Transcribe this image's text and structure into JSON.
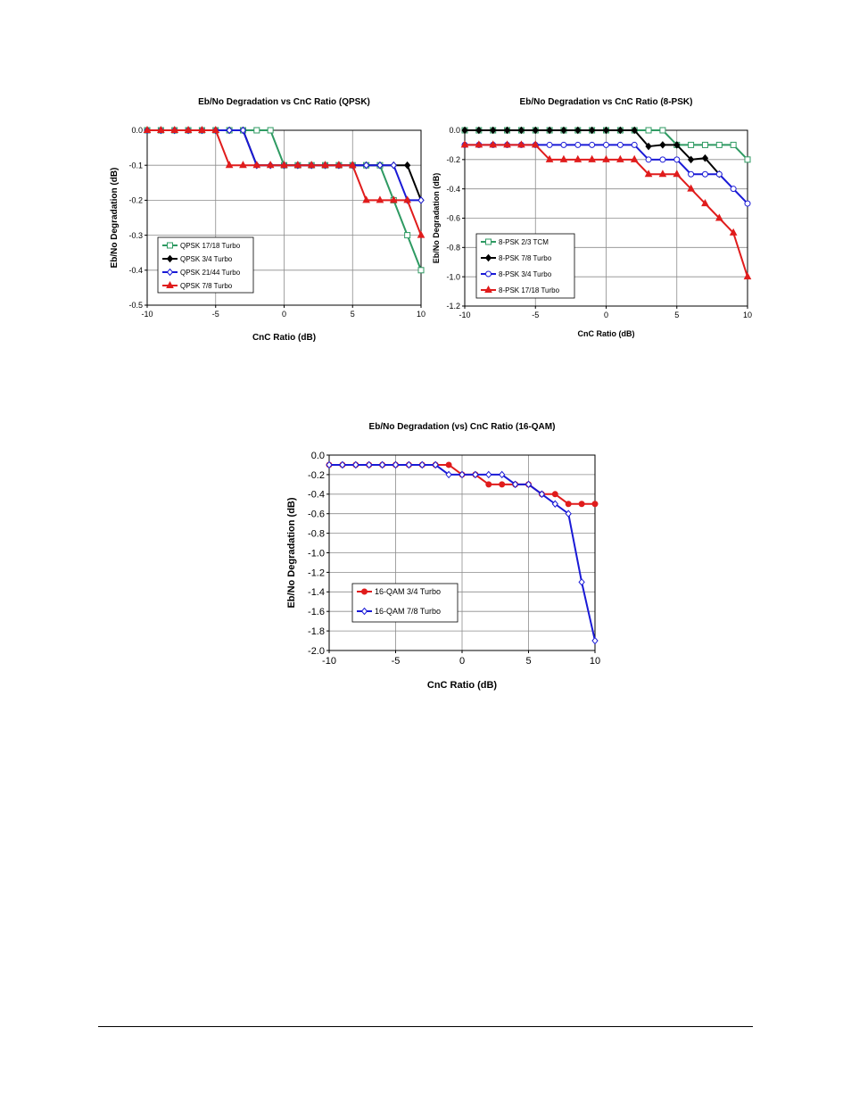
{
  "chart_data": [
    {
      "type": "line",
      "title": "Eb/No Degradation vs CnC Ratio (QPSK)",
      "xlabel": "CnC Ratio (dB)",
      "ylabel": "Eb/No Degradation (dB)",
      "xlim": [
        -10,
        10
      ],
      "ylim": [
        -0.5,
        0.0
      ],
      "xticks": [
        -10,
        -5,
        0,
        5,
        10
      ],
      "xtick_labels": [
        "-10",
        "-5",
        "0",
        "5",
        "10"
      ],
      "yticks": [
        0.0,
        -0.1,
        -0.2,
        -0.3,
        -0.4,
        -0.5
      ],
      "ytick_labels": [
        "0.0",
        "-0.1",
        "-0.2",
        "-0.3",
        "-0.4",
        "-0.5"
      ],
      "grid": true,
      "legend_position": "bottom-left",
      "series": [
        {
          "name": "QPSK 17/18 Turbo",
          "color": "#2e9a62",
          "marker": "open-square",
          "x": [
            -10,
            -9,
            -8,
            -7,
            -6,
            -5,
            -4,
            -3,
            -2,
            -1,
            0,
            1,
            2,
            3,
            4,
            5,
            6,
            7,
            8,
            9,
            10
          ],
          "y": [
            0,
            0,
            0,
            0,
            0,
            0,
            0,
            0,
            0,
            0,
            -0.1,
            -0.1,
            -0.1,
            -0.1,
            -0.1,
            -0.1,
            -0.1,
            -0.1,
            -0.2,
            -0.3,
            -0.4
          ]
        },
        {
          "name": "QPSK 3/4 Turbo",
          "color": "#000000",
          "marker": "filled-diamond",
          "x": [
            -10,
            -9,
            -8,
            -7,
            -6,
            -5,
            -4,
            -3,
            -2,
            -1,
            0,
            1,
            2,
            3,
            4,
            5,
            6,
            7,
            8,
            9,
            10
          ],
          "y": [
            0,
            0,
            0,
            0,
            0,
            0,
            0,
            0,
            -0.1,
            -0.1,
            -0.1,
            -0.1,
            -0.1,
            -0.1,
            -0.1,
            -0.1,
            -0.1,
            -0.1,
            -0.1,
            -0.1,
            -0.2
          ]
        },
        {
          "name": "QPSK 21/44 Turbo",
          "color": "#1a1ad6",
          "marker": "open-diamond",
          "x": [
            -10,
            -9,
            -8,
            -7,
            -6,
            -5,
            -4,
            -3,
            -2,
            -1,
            0,
            1,
            2,
            3,
            4,
            5,
            6,
            7,
            8,
            9,
            10
          ],
          "y": [
            0,
            0,
            0,
            0,
            0,
            0,
            0,
            0,
            -0.1,
            -0.1,
            -0.1,
            -0.1,
            -0.1,
            -0.1,
            -0.1,
            -0.1,
            -0.1,
            -0.1,
            -0.1,
            -0.2,
            -0.2
          ]
        },
        {
          "name": "QPSK 7/8 Turbo",
          "color": "#e01c1c",
          "marker": "filled-triangle",
          "x": [
            -10,
            -9,
            -8,
            -7,
            -6,
            -5,
            -4,
            -3,
            -2,
            -1,
            0,
            1,
            2,
            3,
            4,
            5,
            6,
            7,
            8,
            9,
            10
          ],
          "y": [
            0,
            0,
            0,
            0,
            0,
            0,
            -0.1,
            -0.1,
            -0.1,
            -0.1,
            -0.1,
            -0.1,
            -0.1,
            -0.1,
            -0.1,
            -0.1,
            -0.2,
            -0.2,
            -0.2,
            -0.2,
            -0.3
          ]
        }
      ]
    },
    {
      "type": "line",
      "title": "Eb/No Degradation vs CnC Ratio (8-PSK)",
      "xlabel": "CnC Ratio (dB)",
      "ylabel": "Eb/No Degradation (dB)",
      "xlim": [
        -10,
        10
      ],
      "ylim": [
        -1.2,
        0.0
      ],
      "xticks": [
        -10,
        -5,
        0,
        5,
        10
      ],
      "xtick_labels": [
        "-10",
        "-5",
        "0",
        "5",
        "10"
      ],
      "yticks": [
        0.0,
        -0.2,
        -0.4,
        -0.6,
        -0.8,
        -1.0,
        -1.2
      ],
      "ytick_labels": [
        "0.0",
        "-0.2",
        "-0.4",
        "-0.6",
        "-0.8",
        "-1.0",
        "-1.2"
      ],
      "grid": true,
      "legend_position": "bottom-left",
      "series": [
        {
          "name": "8-PSK 2/3 TCM",
          "color": "#2e9a62",
          "marker": "open-square",
          "x": [
            -10,
            -9,
            -8,
            -7,
            -6,
            -5,
            -4,
            -3,
            -2,
            -1,
            0,
            1,
            2,
            3,
            4,
            5,
            6,
            7,
            8,
            9,
            10
          ],
          "y": [
            0,
            0,
            0,
            0,
            0,
            0,
            0,
            0,
            0,
            0,
            0,
            0,
            0,
            0,
            0,
            -0.1,
            -0.1,
            -0.1,
            -0.1,
            -0.1,
            -0.2
          ]
        },
        {
          "name": "8-PSK 7/8 Turbo",
          "color": "#000000",
          "marker": "filled-diamond",
          "x": [
            -10,
            -9,
            -8,
            -7,
            -6,
            -5,
            -4,
            -3,
            -2,
            -1,
            0,
            1,
            2,
            3,
            4,
            5,
            6,
            7,
            8
          ],
          "y": [
            0,
            0,
            0,
            0,
            0,
            0,
            0,
            0,
            0,
            0,
            0,
            0,
            0,
            -0.11,
            -0.1,
            -0.1,
            -0.2,
            -0.19,
            -0.3
          ]
        },
        {
          "name": "8-PSK 3/4 Turbo",
          "color": "#1a1ad6",
          "marker": "open-circle",
          "x": [
            -10,
            -9,
            -8,
            -7,
            -6,
            -5,
            -4,
            -3,
            -2,
            -1,
            0,
            1,
            2,
            3,
            4,
            5,
            6,
            7,
            8,
            9,
            10
          ],
          "y": [
            -0.1,
            -0.1,
            -0.1,
            -0.1,
            -0.1,
            -0.1,
            -0.1,
            -0.1,
            -0.1,
            -0.1,
            -0.1,
            -0.1,
            -0.1,
            -0.2,
            -0.2,
            -0.2,
            -0.3,
            -0.3,
            -0.3,
            -0.4,
            -0.5
          ]
        },
        {
          "name": "8-PSK 17/18 Turbo",
          "color": "#e01c1c",
          "marker": "filled-triangle",
          "x": [
            -10,
            -9,
            -8,
            -7,
            -6,
            -5,
            -4,
            -3,
            -2,
            -1,
            0,
            1,
            2,
            3,
            4,
            5,
            6,
            7,
            8,
            9,
            10
          ],
          "y": [
            -0.1,
            -0.1,
            -0.1,
            -0.1,
            -0.1,
            -0.1,
            -0.2,
            -0.2,
            -0.2,
            -0.2,
            -0.2,
            -0.2,
            -0.2,
            -0.3,
            -0.3,
            -0.3,
            -0.4,
            -0.5,
            -0.6,
            -0.7,
            -1.0
          ]
        }
      ]
    },
    {
      "type": "line",
      "title": "Eb/No Degradation (vs) CnC Ratio (16-QAM)",
      "xlabel": "CnC Ratio (dB)",
      "ylabel": "Eb/No Degradation (dB)",
      "xlim": [
        -10,
        10
      ],
      "ylim": [
        -2.0,
        0.0
      ],
      "xticks": [
        -10,
        -5,
        0,
        5,
        10
      ],
      "xtick_labels": [
        "-10",
        "-5",
        "0",
        "5",
        "10"
      ],
      "yticks": [
        0.0,
        -0.2,
        -0.4,
        -0.6,
        -0.8,
        -1.0,
        -1.2,
        -1.4,
        -1.6,
        -1.8,
        -2.0
      ],
      "ytick_labels": [
        "0.0",
        "-0.2",
        "-0.4",
        "-0.6",
        "-0.8",
        "-1.0",
        "-1.2",
        "-1.4",
        "-1.6",
        "-1.8",
        "-2.0"
      ],
      "grid": true,
      "legend_position": "bottom-left",
      "series": [
        {
          "name": "16-QAM 3/4 Turbo",
          "color": "#e01c1c",
          "marker": "filled-circle",
          "x": [
            -10,
            -9,
            -8,
            -7,
            -6,
            -5,
            -4,
            -3,
            -2,
            -1,
            0,
            1,
            2,
            3,
            4,
            5,
            6,
            7,
            8,
            9,
            10
          ],
          "y": [
            -0.1,
            -0.1,
            -0.1,
            -0.1,
            -0.1,
            -0.1,
            -0.1,
            -0.1,
            -0.1,
            -0.1,
            -0.2,
            -0.2,
            -0.3,
            -0.3,
            -0.3,
            -0.3,
            -0.4,
            -0.4,
            -0.5,
            -0.5,
            -0.5
          ]
        },
        {
          "name": "16-QAM 7/8 Turbo",
          "color": "#1a1ad6",
          "marker": "open-diamond",
          "x": [
            -10,
            -9,
            -8,
            -7,
            -6,
            -5,
            -4,
            -3,
            -2,
            -1,
            0,
            1,
            2,
            3,
            4,
            5,
            6,
            7,
            8,
            9,
            10
          ],
          "y": [
            -0.1,
            -0.1,
            -0.1,
            -0.1,
            -0.1,
            -0.1,
            -0.1,
            -0.1,
            -0.1,
            -0.2,
            -0.2,
            -0.2,
            -0.2,
            -0.2,
            -0.3,
            -0.3,
            -0.4,
            -0.5,
            -0.6,
            -1.3,
            -1.9
          ]
        }
      ]
    }
  ]
}
